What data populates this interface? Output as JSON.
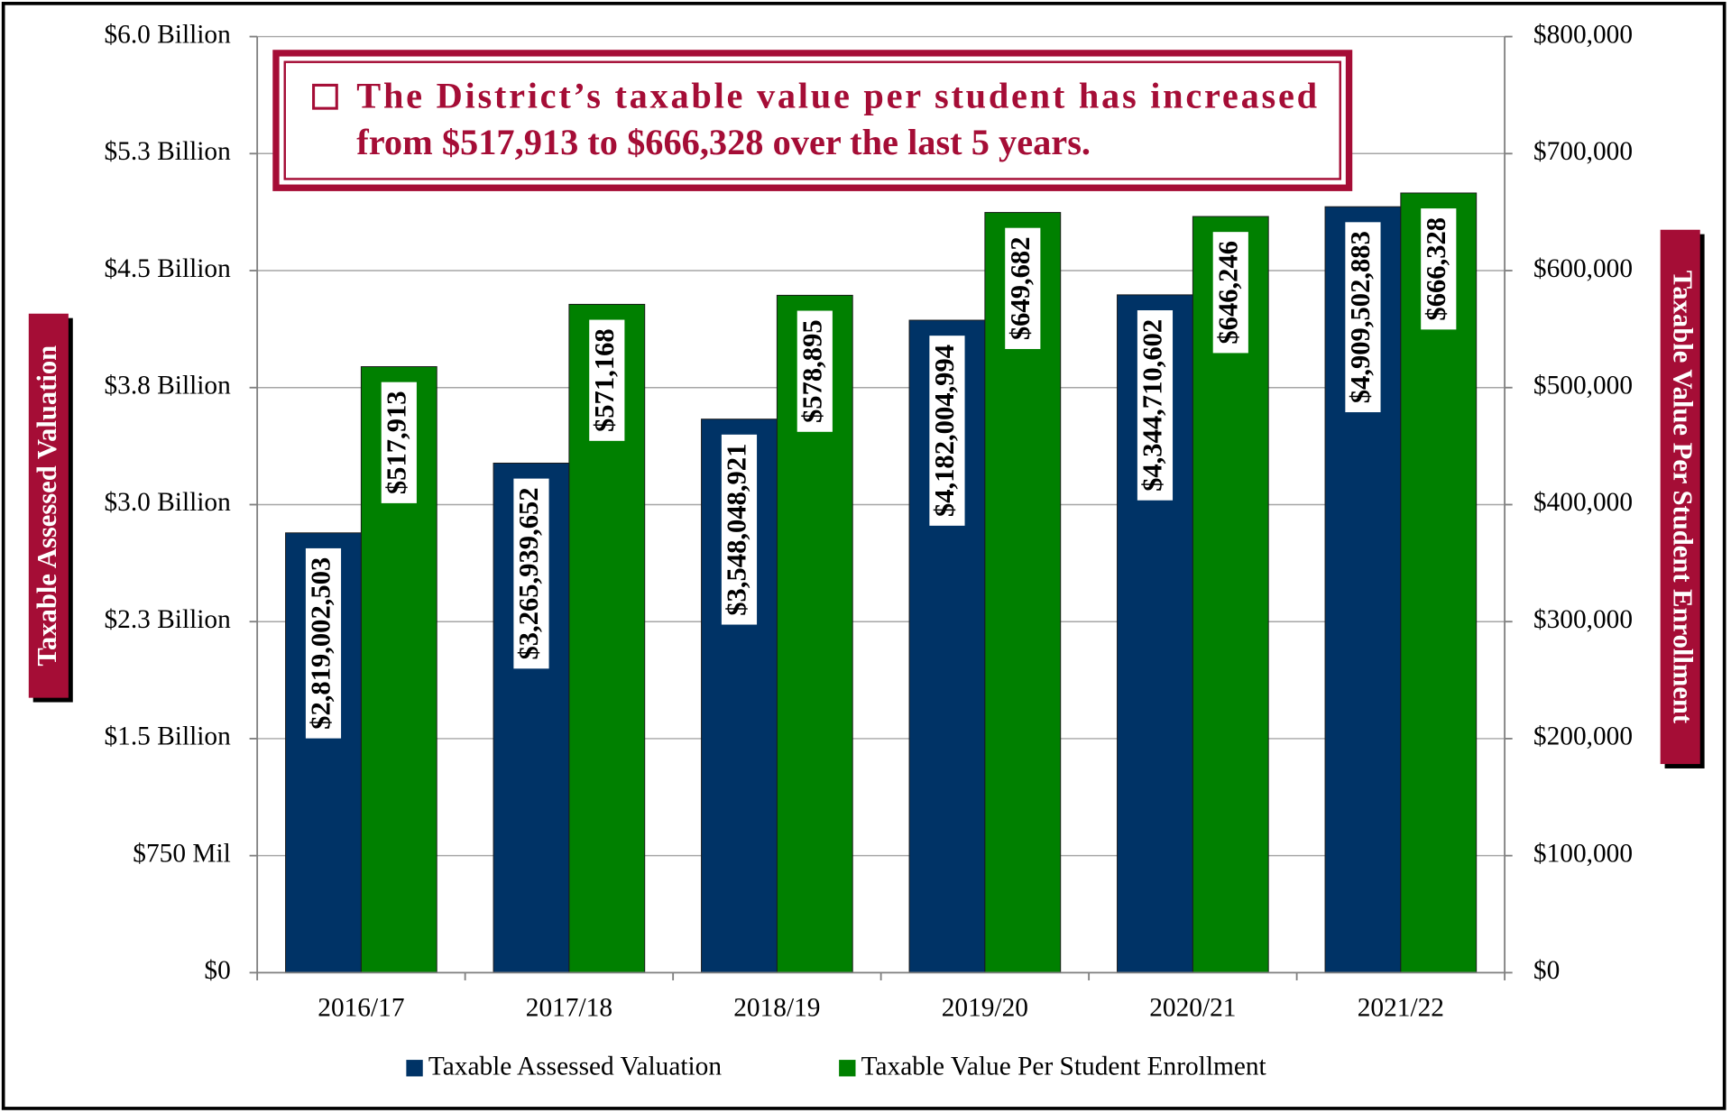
{
  "chart_data": {
    "type": "bar",
    "annotation": [
      "The District’s taxable value per student has increased",
      "from $517,913 to $666,328 over the last 5 years."
    ],
    "y_label": "Taxable Assessed Valuation",
    "y2_label": "Taxable Value Per Student Enrollment",
    "categories": [
      "2016/17",
      "2017/18",
      "2018/19",
      "2019/20",
      "2020/21",
      "2021/22"
    ],
    "series": [
      {
        "name": "Taxable Assessed Valuation",
        "color": "#003366",
        "values": [
          2819002503,
          3265939652,
          3548048921,
          4182004994,
          4344710602,
          4909502883
        ],
        "value_labels": [
          "$2,819,002,503",
          "$3,265,939,652",
          "$3,548,048,921",
          "$4,182,004,994",
          "$4,344,710,602",
          "$4,909,502,883"
        ]
      },
      {
        "name": "Taxable Value Per Student Enrollment",
        "color": "#008000",
        "axis": "y2",
        "values": [
          517913,
          571168,
          578895,
          649682,
          646246,
          666328
        ],
        "value_labels": [
          "$517,913",
          "$571,168",
          "$578,895",
          "$649,682",
          "$646,246",
          "$666,328"
        ]
      }
    ],
    "ylim": [
      0,
      6000000000
    ],
    "yticks": [
      {
        "value": 0,
        "label": "$0"
      },
      {
        "value": 750000000,
        "label": "$750 Mil"
      },
      {
        "value": 1500000000,
        "label": "$1.5 Billion"
      },
      {
        "value": 2250000000,
        "label": "$2.3 Billion"
      },
      {
        "value": 3000000000,
        "label": "$3.0 Billion"
      },
      {
        "value": 3750000000,
        "label": "$3.8 Billion"
      },
      {
        "value": 4500000000,
        "label": "$4.5 Billion"
      },
      {
        "value": 5250000000,
        "label": "$5.3 Billion"
      },
      {
        "value": 6000000000,
        "label": "$6.0 Billion"
      }
    ],
    "y2lim": [
      0,
      800000
    ],
    "y2ticks": [
      {
        "value": 0,
        "label": "$0"
      },
      {
        "value": 100000,
        "label": "$100,000"
      },
      {
        "value": 200000,
        "label": "$200,000"
      },
      {
        "value": 300000,
        "label": "$300,000"
      },
      {
        "value": 400000,
        "label": "$400,000"
      },
      {
        "value": 500000,
        "label": "$500,000"
      },
      {
        "value": 600000,
        "label": "$600,000"
      },
      {
        "value": 700000,
        "label": "$700,000"
      },
      {
        "value": 800000,
        "label": "$800,000"
      }
    ],
    "grid": true,
    "legend": "bottom"
  }
}
